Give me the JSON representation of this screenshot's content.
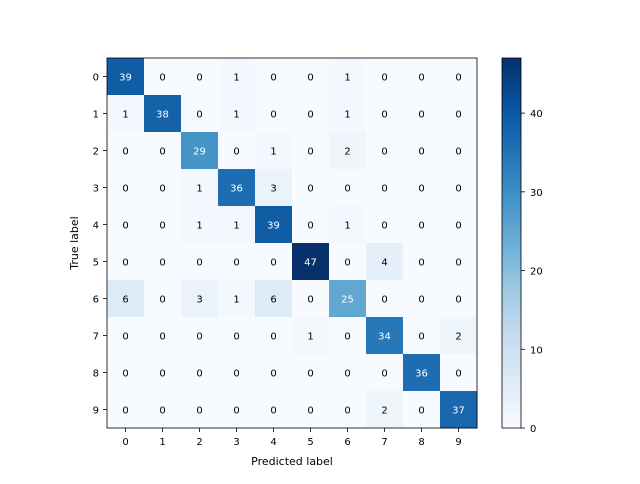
{
  "chart_data": {
    "type": "heatmap",
    "title": "",
    "xlabel": "Predicted label",
    "ylabel": "True label",
    "x_categories": [
      "0",
      "1",
      "2",
      "3",
      "4",
      "5",
      "6",
      "7",
      "8",
      "9"
    ],
    "y_categories": [
      "0",
      "1",
      "2",
      "3",
      "4",
      "5",
      "6",
      "7",
      "8",
      "9"
    ],
    "matrix": [
      [
        39,
        0,
        0,
        1,
        0,
        0,
        1,
        0,
        0,
        0
      ],
      [
        1,
        38,
        0,
        1,
        0,
        0,
        1,
        0,
        0,
        0
      ],
      [
        0,
        0,
        29,
        0,
        1,
        0,
        2,
        0,
        0,
        0
      ],
      [
        0,
        0,
        1,
        36,
        3,
        0,
        0,
        0,
        0,
        0
      ],
      [
        0,
        0,
        1,
        1,
        39,
        0,
        1,
        0,
        0,
        0
      ],
      [
        0,
        0,
        0,
        0,
        0,
        47,
        0,
        4,
        0,
        0
      ],
      [
        6,
        0,
        3,
        1,
        6,
        0,
        25,
        0,
        0,
        0
      ],
      [
        0,
        0,
        0,
        0,
        0,
        1,
        0,
        34,
        0,
        2
      ],
      [
        0,
        0,
        0,
        0,
        0,
        0,
        0,
        0,
        36,
        0
      ],
      [
        0,
        0,
        0,
        0,
        0,
        0,
        0,
        2,
        0,
        37
      ]
    ],
    "colormap": "Blues",
    "color_range": [
      0,
      47
    ],
    "colorbar_ticks": [
      0,
      10,
      20,
      30,
      40
    ],
    "colorbar_position": "right",
    "grid": false
  },
  "colors": {
    "low": "#f7fbff",
    "high": "#08306b",
    "text_dark": "#000000",
    "text_light": "#ffffff",
    "axis": "#000000"
  }
}
